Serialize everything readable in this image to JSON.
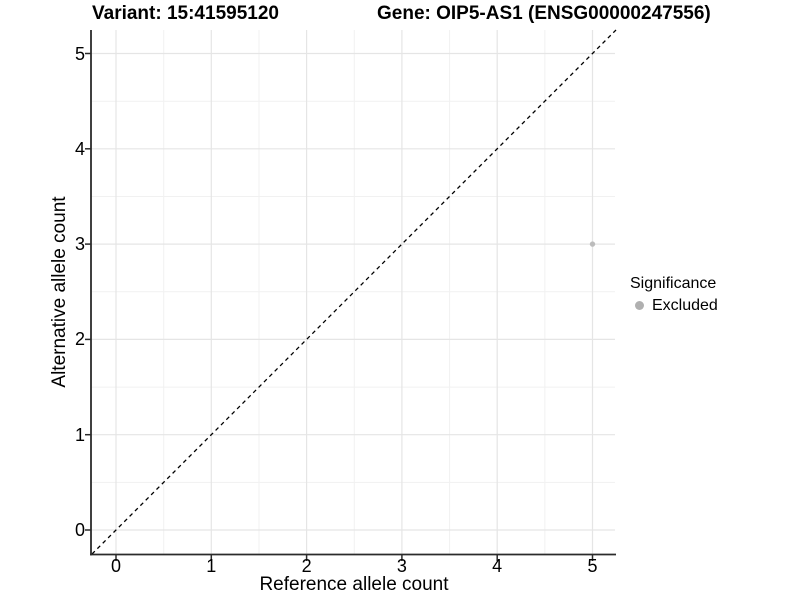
{
  "header": {
    "variant_title": "Variant: 15:41595120",
    "gene_title": "Gene: OIP5-AS1 (ENSG00000247556)"
  },
  "chart_data": {
    "type": "scatter",
    "title_left": "Variant: 15:41595120",
    "title_right": "Gene: OIP5-AS1 (ENSG00000247556)",
    "xlabel": "Reference allele count",
    "ylabel": "Alternative allele count",
    "xlim": [
      -0.25,
      5.25
    ],
    "ylim": [
      -0.25,
      5.25
    ],
    "x_ticks": [
      "0",
      "1",
      "2",
      "3",
      "4",
      "5"
    ],
    "y_ticks": [
      "0",
      "1",
      "2",
      "3",
      "4",
      "5"
    ],
    "grid": {
      "major": true,
      "minor": true
    },
    "identity_line": {
      "slope": 1,
      "intercept": 0,
      "style": "dashed",
      "color": "#000000"
    },
    "series": [
      {
        "name": "Excluded",
        "color": "#bcbcbc",
        "points": [
          {
            "x": 5,
            "y": 3
          }
        ]
      }
    ],
    "legend": {
      "title": "Significance",
      "position": "right",
      "entries": [
        {
          "label": "Excluded",
          "color": "#b0b0b0"
        }
      ]
    }
  },
  "colors": {
    "background": "#ffffff",
    "grid_major": "#e5e5e5",
    "grid_minor": "#f1f1f1",
    "axis_line": "#2b2b2b",
    "point": "#bcbcbc",
    "text": "#000000"
  }
}
